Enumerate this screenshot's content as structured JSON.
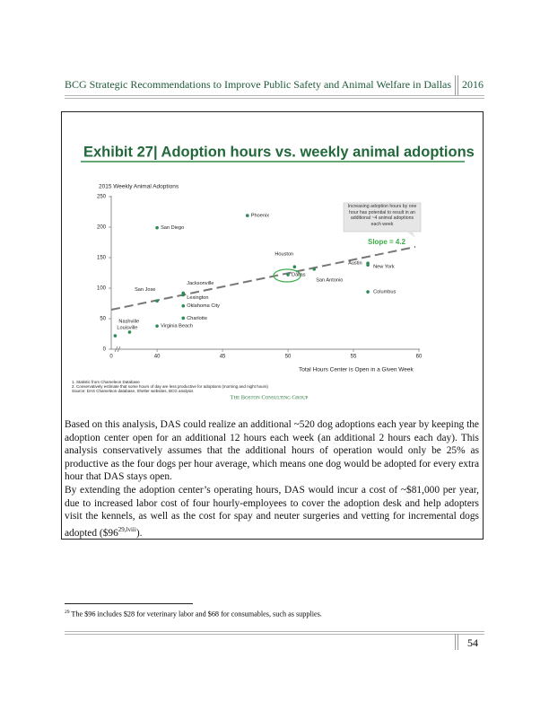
{
  "header": {
    "title": "BCG Strategic Recommendations to Improve Public Safety and Animal Welfare in Dallas",
    "year": "2016"
  },
  "chart_data": {
    "type": "scatter",
    "title": "Exhibit 27| Adoption hours vs. weekly animal adoptions",
    "y_label": "2015 Weekly Animal Adoptions",
    "x_label": "Total Hours Center is Open in a Given Week",
    "x_break_label": "0",
    "xlim": [
      36.5,
      60
    ],
    "xticks": [
      40,
      45,
      50,
      55,
      60
    ],
    "ylim": [
      0,
      250
    ],
    "yticks": [
      0,
      50,
      100,
      150,
      200,
      250
    ],
    "color": "#2e8a57",
    "points": [
      {
        "label": "Louisville",
        "x": 36.8,
        "y": 22
      },
      {
        "label": "Nashville",
        "x": 37.9,
        "y": 28
      },
      {
        "label": "Virginia Beach",
        "x": 40,
        "y": 38
      },
      {
        "label": "Charlotte",
        "x": 42,
        "y": 51
      },
      {
        "label": "Oklahoma City",
        "x": 42,
        "y": 71
      },
      {
        "label": "Lexington",
        "x": 42,
        "y": 89
      },
      {
        "label": "Jacksonville",
        "x": 42,
        "y": 92
      },
      {
        "label": "San Jose",
        "x": 40,
        "y": 79
      },
      {
        "label": "San Diego",
        "x": 40,
        "y": 199
      },
      {
        "label": "Phoenix",
        "x": 46.9,
        "y": 219
      },
      {
        "label": "Houston",
        "x": 50.5,
        "y": 135
      },
      {
        "label": "Dallas",
        "x": 50,
        "y": 122
      },
      {
        "label": "San Antonio",
        "x": 52,
        "y": 131
      },
      {
        "label": "Austin",
        "x": 56.1,
        "y": 141
      },
      {
        "label": "New York",
        "x": 56.1,
        "y": 138
      },
      {
        "label": "Columbus",
        "x": 56.1,
        "y": 94
      }
    ],
    "callout": "Increasing adoption hours by one hour has potential to result in an additional ~4 animal adoptions each week",
    "slope_label": "Slope = 4.2",
    "notes": [
      "1. Statistic from Chameleon Database",
      "2. Conservatively estimate that some hours of day are less productive for adoptions (morning and night hours)",
      "Source: DAS Chameleon database, Shelter websites, BCG analysis"
    ],
    "logo": "The Boston Consulting Group"
  },
  "paragraphs": [
    "Based on this analysis, DAS could realize an additional ~520 dog adoptions each year by keeping the adoption center open for an additional 12 hours each week (an additional 2 hours each day). This analysis conservatively assumes that the additional hours of operation would only be 25% as productive as the four dogs per hour average, which means one dog would be adopted for every extra hour that DAS stays open.",
    {
      "text": "By extending the adoption center’s operating hours, DAS would incur a cost of ~$81,000 per year, due to increased labor cost of four hourly-employees to cover the adoption desk and help adopters visit the kennels, as well as the cost for spay and neuter surgeries and vetting for incremental dogs adopted ($96",
      "sup": "29,lviii",
      "end": ")."
    }
  ],
  "footnote": {
    "number": "29",
    "text": "The $96 includes $28 for veterinary labor and $68 for consumables, such as supplies."
  },
  "page_number": "54"
}
